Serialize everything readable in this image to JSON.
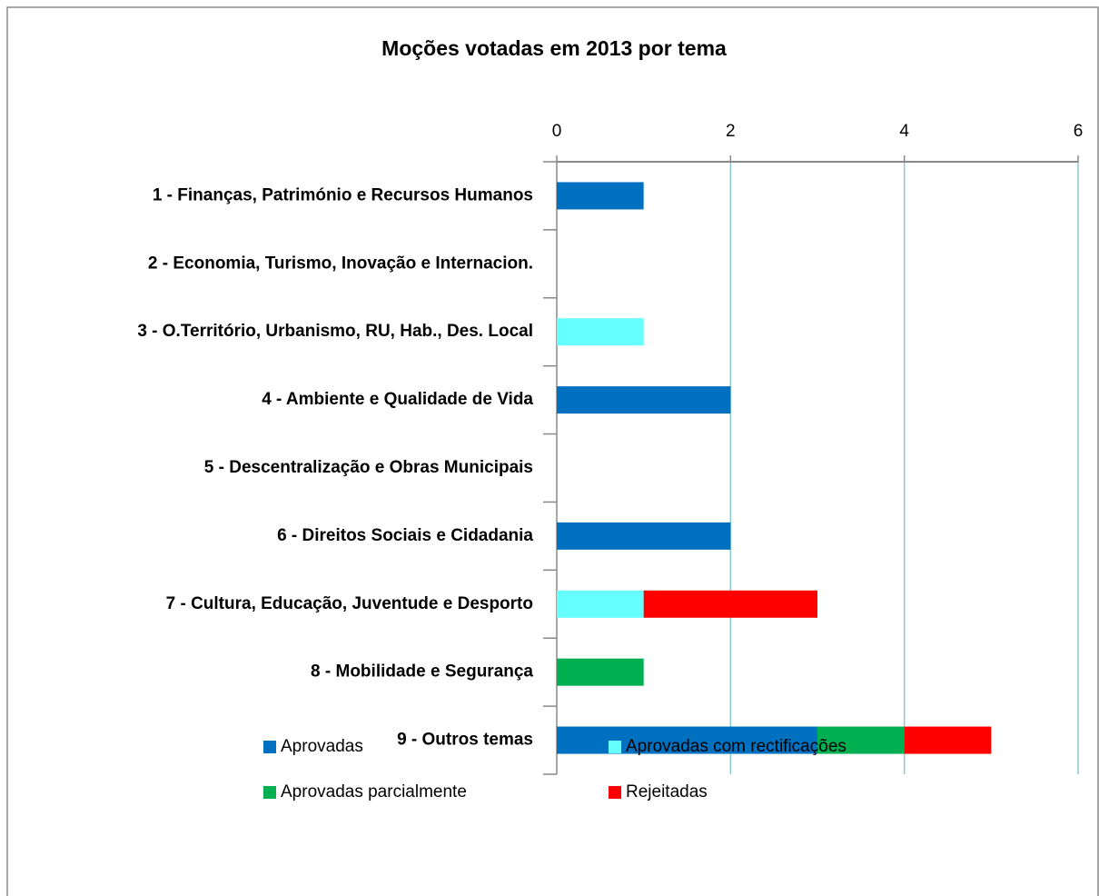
{
  "chart_data": {
    "type": "stacked-bar-horizontal",
    "title": "Moções votadas em 2013 por tema",
    "categories": [
      "1 - Finanças, Património e Recursos Humanos",
      "2 - Economia, Turismo, Inovação e Internacion.",
      "3 - O.Território, Urbanismo, RU, Hab., Des. Local",
      "4 - Ambiente e Qualidade de Vida",
      "5 - Descentralização e Obras Municipais",
      "6 - Direitos Sociais e Cidadania",
      "7 - Cultura, Educação, Juventude e Desporto",
      "8 - Mobilidade e Segurança",
      "9 - Outros temas"
    ],
    "series": [
      {
        "name": "Aprovadas",
        "color": "#0070c0",
        "values": [
          1,
          0,
          0,
          2,
          0,
          2,
          0,
          0,
          3
        ]
      },
      {
        "name": "Aprovadas com rectificações",
        "color": "#66ffff",
        "values": [
          0,
          0,
          1,
          0,
          0,
          0,
          1,
          0,
          0
        ]
      },
      {
        "name": "Aprovadas parcialmente",
        "color": "#00b050",
        "values": [
          0,
          0,
          0,
          0,
          0,
          0,
          0,
          1,
          1
        ]
      },
      {
        "name": "Rejeitadas",
        "color": "#ff0000",
        "values": [
          0,
          0,
          0,
          0,
          0,
          0,
          2,
          0,
          1
        ]
      }
    ],
    "xlim": [
      0,
      6
    ],
    "xticks": [
      0,
      2,
      4,
      6
    ],
    "grid": true
  }
}
